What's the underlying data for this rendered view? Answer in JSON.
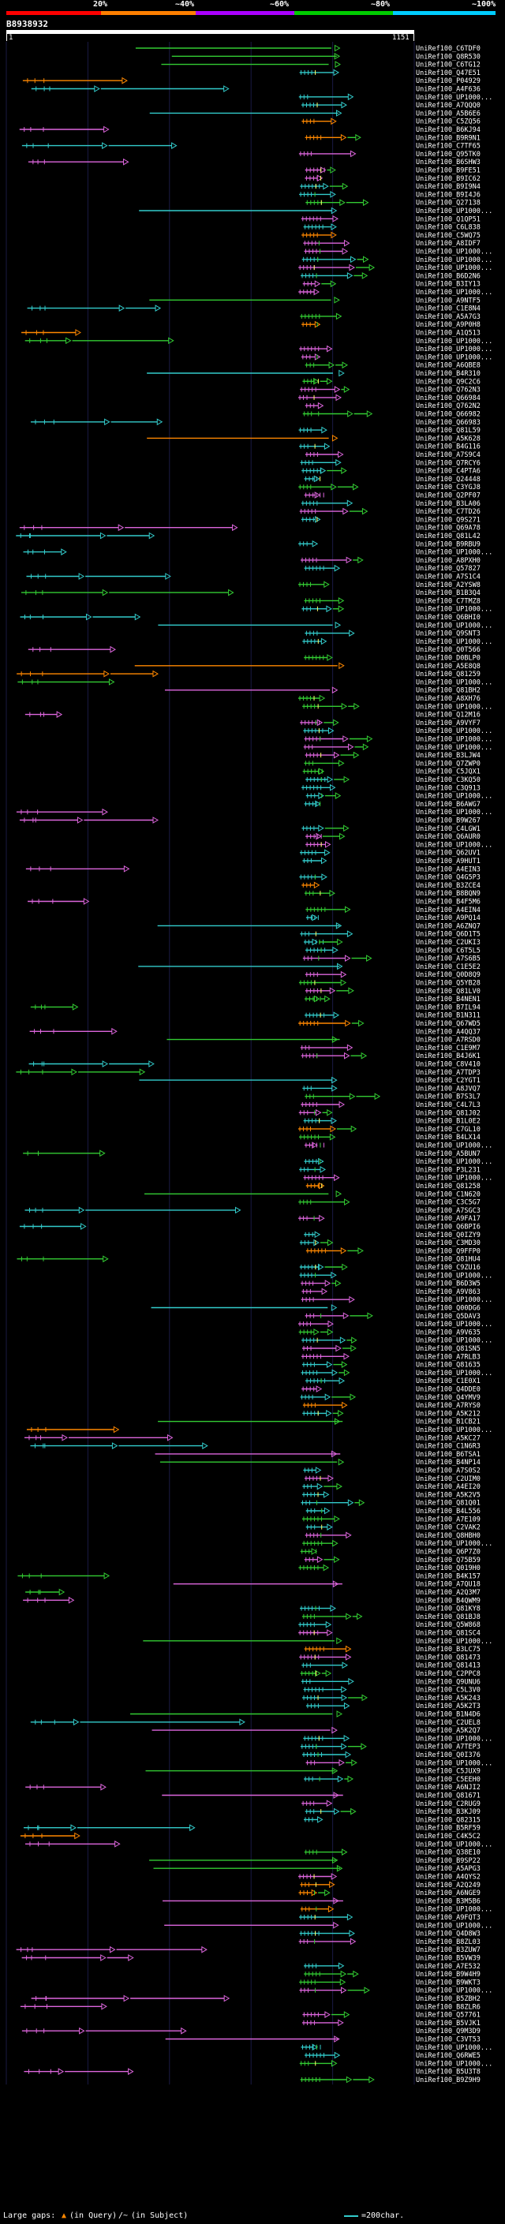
{
  "legend": {
    "labels": [
      "20%",
      "~40%",
      "~60%",
      "~80%",
      "~100%"
    ],
    "colors": [
      "#ff0000",
      "#ff7f00",
      "#aa00ff",
      "#00cc00",
      "#00ccff"
    ]
  },
  "query": {
    "id": "B8938932",
    "start": "1",
    "end": "1151"
  },
  "colors": {
    "green": "#33cc33",
    "magenta": "#dd66dd",
    "cyan": "#33cccc",
    "orange": "#ff8800",
    "yellow": "#ffff66",
    "blue": "#5577ee",
    "grid": "#1a1a44"
  },
  "hits": [
    "UniRef100_C6TDF0",
    "UniRef100_Q8R530",
    "UniRef100_C6TG12",
    "UniRef100_Q47E51",
    "UniRef100_P04929",
    "UniRef100_A4F636",
    "UniRef100_UP1000...",
    "UniRef100_A7QQQ0",
    "UniRef100_A5B6E6",
    "UniRef100_C5ZQ56",
    "UniRef100_B6KJ94",
    "UniRef100_B9R9N1",
    "UniRef100_C7TF65",
    "UniRef100_Q95TK0",
    "UniRef100_B6SHW3",
    "UniRef100_B9FE51",
    "UniRef100_B9IC62",
    "UniRef100_B9I9N4",
    "UniRef100_B9I4J6",
    "UniRef100_Q27138",
    "UniRef100_UP1000...",
    "UniRef100_Q1QP51",
    "UniRef100_C6L838",
    "UniRef100_C5WQ75",
    "UniRef100_A8IDF7",
    "UniRef100_UP1000...",
    "UniRef100_UP1000...",
    "UniRef100_UP1000...",
    "UniRef100_B6D2N6",
    "UniRef100_B3IY13",
    "UniRef100_UP1000...",
    "UniRef100_A9NTF5",
    "UniRef100_C1E8N4",
    "UniRef100_A5A7G3",
    "UniRef100_A9P0H8",
    "UniRef100_A1Q513",
    "UniRef100_UP1000...",
    "UniRef100_UP1000...",
    "UniRef100_UP1000...",
    "UniRef100_A6QBE8",
    "UniRef100_B4R310",
    "UniRef100_Q9C2C6",
    "UniRef100_Q762N3",
    "UniRef100_Q66984",
    "UniRef100_Q762N2",
    "UniRef100_Q66982",
    "UniRef100_Q66983",
    "UniRef100_Q81L59",
    "UniRef100_A5K628",
    "UniRef100_B4G116",
    "UniRef100_A7S9C4",
    "UniRef100_Q7RCY6",
    "UniRef100_C4PTA6",
    "UniRef100_Q24448",
    "UniRef100_C3YGJ8",
    "UniRef100_Q2PF07",
    "UniRef100_B3LA06",
    "UniRef100_C7TD26",
    "UniRef100_Q9S271",
    "UniRef100_Q69A78",
    "UniRef100_Q81L42",
    "UniRef100_B9RBU9",
    "UniRef100_UP1000...",
    "UniRef100_A8PXH0",
    "UniRef100_Q57827",
    "UniRef100_A7S1C4",
    "UniRef100_A2YSW8",
    "UniRef100_B1B3Q4",
    "UniRef100_C7TMZ8",
    "UniRef100_UP1000...",
    "UniRef100_Q6BHI0",
    "UniRef100_UP1000...",
    "UniRef100_Q9SNT3",
    "UniRef100_UP1000...",
    "UniRef100_Q0T566",
    "UniRef100_D0BLP0",
    "UniRef100_A5E8Q8",
    "UniRef100_Q81259",
    "UniRef100_UP1000...",
    "UniRef100_Q81BH2",
    "UniRef100_A8XH76",
    "UniRef100_UP1000...",
    "UniRef100_Q12M16",
    "UniRef100_A9VYF7",
    "UniRef100_UP1000...",
    "UniRef100_UP1000...",
    "UniRef100_UP1000...",
    "UniRef100_B3LJW4",
    "UniRef100_Q7ZWP0",
    "UniRef100_C5JQX1",
    "UniRef100_C3KQ50",
    "UniRef100_C3Q913",
    "UniRef100_UP1000...",
    "UniRef100_B6AWG7",
    "UniRef100_UP1000...",
    "UniRef100_B9W267",
    "UniRef100_C4LGW1",
    "UniRef100_Q6AUR0",
    "UniRef100_UP1000...",
    "UniRef100_Q62UV1",
    "UniRef100_A9HUT1",
    "UniRef100_A4EIN3",
    "UniRef100_Q4G5P3",
    "UniRef100_B3ZCE4",
    "UniRef100_B8BQN9",
    "UniRef100_B4F5M6",
    "UniRef100_A4EIN4",
    "UniRef100_A9PQ14",
    "UniRef100_A6ZNQ7",
    "UniRef100_Q6D1T5",
    "UniRef100_C2UKI3",
    "UniRef100_C6T5L5",
    "UniRef100_A7S6B5",
    "UniRef100_C1E5E2",
    "UniRef100_Q0D8Q9",
    "UniRef100_Q5YB28",
    "UniRef100_Q81LV0",
    "UniRef100_B4NEN1",
    "UniRef100_B7IL94",
    "UniRef100_B1N311",
    "UniRef100_Q67WD5",
    "UniRef100_A4QQ37",
    "UniRef100_A7RSD0",
    "UniRef100_C1E9M7",
    "UniRef100_B4J6K1",
    "UniRef100_C8V410",
    "UniRef100_A7TDP3",
    "UniRef100_C2YGT1",
    "UniRef100_A8JVQ7",
    "UniRef100_B7S3L7",
    "UniRef100_C4L7L3",
    "UniRef100_Q81J02",
    "UniRef100_B1L0E2",
    "UniRef100_C7GL10",
    "UniRef100_B4LX14",
    "UniRef100_UP1000...",
    "UniRef100_A5BUN7",
    "UniRef100_UP1000...",
    "UniRef100_P3L231",
    "UniRef100_UP1000...",
    "UniRef100_Q81258",
    "UniRef100_C1N620",
    "UniRef100_C3C5G7",
    "UniRef100_A7SGC3",
    "UniRef100_A9FA17",
    "UniRef100_Q6BPI6",
    "UniRef100_Q0IZY9",
    "UniRef100_C3MD30",
    "UniRef100_Q9FFP0",
    "UniRef100_Q81HU4",
    "UniRef100_C9ZU16",
    "UniRef100_UP1000...",
    "UniRef100_B6D3W5",
    "UniRef100_A9V863",
    "UniRef100_UP1000...",
    "UniRef100_Q00DG6",
    "UniRef100_Q5DAV3",
    "UniRef100_UP1000...",
    "UniRef100_A9V635",
    "UniRef100_UP1000...",
    "UniRef100_Q81SN5",
    "UniRef100_A7RLB3",
    "UniRef100_Q81635",
    "UniRef100_UP1000...",
    "UniRef100_C1E0X1",
    "UniRef100_Q4DDE0",
    "UniRef100_Q4YMV9",
    "UniRef100_A7RYS0",
    "UniRef100_A5K212",
    "UniRef100_B1CB21",
    "UniRef100_UP1000...",
    "UniRef100_A5KC27",
    "UniRef100_C1N6R3",
    "UniRef100_B6TSA1",
    "UniRef100_B4NP14",
    "UniRef100_A7S0S2",
    "UniRef100_C2UIM0",
    "UniRef100_A4EI20",
    "UniRef100_A5K2V5",
    "UniRef100_Q81Q01",
    "UniRef100_B4L556",
    "UniRef100_A7E109",
    "UniRef100_C2VAK2",
    "UniRef100_Q8HBH0",
    "UniRef100_UP1000...",
    "UniRef100_Q6P7Z0",
    "UniRef100_Q75B59",
    "UniRef100_Q019H0",
    "UniRef100_B4K157",
    "UniRef100_A7QU18",
    "UniRef100_A2Q3M7",
    "UniRef100_B4QWM9",
    "UniRef100_Q81KY8",
    "UniRef100_Q81BJ8",
    "UniRef100_Q5W868",
    "UniRef100_Q81SC4",
    "UniRef100_UP1000...",
    "UniRef100_B3LC75",
    "UniRef100_Q81473",
    "UniRef100_Q81413",
    "UniRef100_C2PPC8",
    "UniRef100_Q9UNU6",
    "UniRef100_C5L3V0",
    "UniRef100_A5K243",
    "UniRef100_A5K2T3",
    "UniRef100_B1N4D6",
    "UniRef100_C2UEL8",
    "UniRef100_A5K2Q7",
    "UniRef100_UP1000...",
    "UniRef100_A7TEP3",
    "UniRef100_Q0I376",
    "UniRef100_UP1000...",
    "UniRef100_C5JUX9",
    "UniRef100_C5EEH0",
    "UniRef100_A6NJI2",
    "UniRef100_Q81671",
    "UniRef100_C2RUG9",
    "UniRef100_B3KJ09",
    "UniRef100_Q82315",
    "UniRef100_B5RF59",
    "UniRef100_C4K5C2",
    "UniRef100_UP1000...",
    "UniRef100_Q38E10",
    "UniRef100_B9SP22",
    "UniRef100_A5APG3",
    "UniRef100_A4QYS2",
    "UniRef100_A2Q249",
    "UniRef100_A6NGE9",
    "UniRef100_B3M5B6",
    "UniRef100_UP1000...",
    "UniRef100_A9FQT3",
    "UniRef100_UP1000...",
    "UniRef100_Q4D8W3",
    "UniRef100_B8ZL03",
    "UniRef100_B3ZUW7",
    "UniRef100_B5VW39",
    "UniRef100_A7E532",
    "UniRef100_B9W4H9",
    "UniRef100_B9WKT3",
    "UniRef100_UP1000...",
    "UniRef100_B5ZBH2",
    "UniRef100_B8ZLR6",
    "UniRef100_Q57761",
    "UniRef100_B5VJK1",
    "UniRef100_Q9M3D9",
    "UniRef100_C3VT53",
    "UniRef100_UP1000...",
    "UniRef100_Q6RWE5",
    "UniRef100_UP1000...",
    "UniRef100_B5U3T8",
    "UniRef100_B9Z9H9"
  ],
  "footer": {
    "gaps_label": "Large gaps:",
    "query_gap_label": "(in Query)",
    "subject_gap_label": "(in Subject)",
    "scale_label": "=200char."
  }
}
